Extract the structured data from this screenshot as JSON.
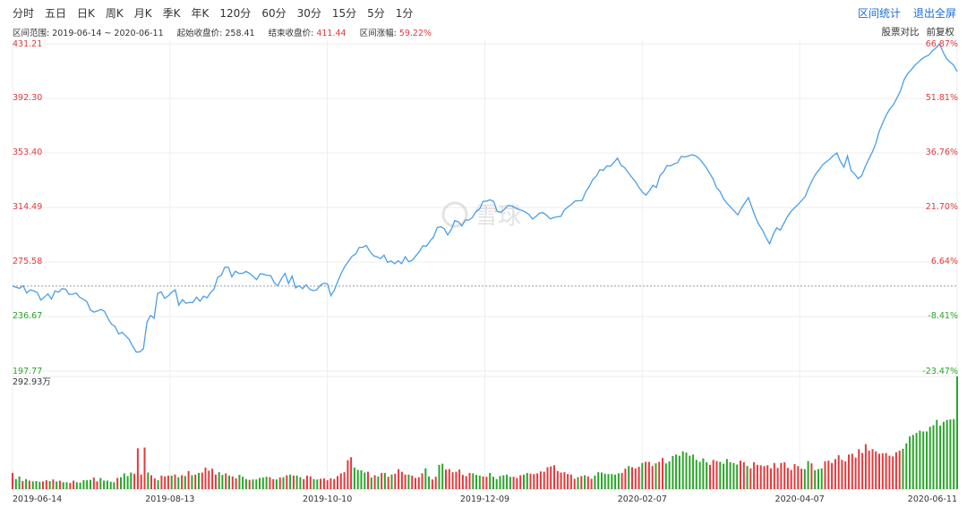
{
  "toolbar": {
    "periods": [
      "分时",
      "五日",
      "日K",
      "周K",
      "月K",
      "季K",
      "年K",
      "120分",
      "60分",
      "30分",
      "15分",
      "5分",
      "1分"
    ],
    "active_period": "日K",
    "right_actions": [
      "区间统计",
      "退出全屏"
    ]
  },
  "info_bar": {
    "range_label": "区间范围:",
    "range_value": "2019-06-14 ~ 2020-06-11",
    "start_label": "起始收盘价:",
    "start_value": "258.41",
    "end_label": "结束收盘价:",
    "end_value": "411.44",
    "change_label": "区间涨幅:",
    "change_value": "59.22%",
    "tools": [
      "股票对比",
      "前复权"
    ]
  },
  "watermark": "雪球",
  "colors": {
    "line": "#4a9ee8",
    "up": "#e4393c",
    "down": "#2aa52a",
    "grid": "#eeeeee",
    "baseline": "#999999"
  },
  "chart_data": [
    {
      "type": "line",
      "x_start": "2019-06-14",
      "x_end": "2020-06-11",
      "x_tick_labels": [
        "2019-06-14",
        "2019-08-13",
        "2019-10-10",
        "2019-12-09",
        "2020-02-07",
        "2020-04-07",
        "2020-06-11"
      ],
      "ylim": [
        197.77,
        431.21
      ],
      "y_tick_labels": [
        "431.21",
        "392.30",
        "353.40",
        "314.49",
        "275.58",
        "236.67",
        "197.77"
      ],
      "pct_tick_labels": [
        "66.87%",
        "51.81%",
        "36.76%",
        "21.70%",
        "6.64%",
        "-8.41%",
        "-23.47%"
      ],
      "baseline": 258.41,
      "series": [
        {
          "values": [
            258.4,
            257.5,
            256.8,
            258.6,
            253.5,
            255.7,
            254.9,
            253.8,
            248.4,
            250.5,
            252.8,
            249.2,
            254.9,
            254.1,
            256.6,
            256.2,
            252.5,
            252.6,
            253.4,
            250.4,
            249.1,
            247.3,
            241.5,
            239.8,
            240.6,
            241.8,
            240.4,
            235.2,
            231.2,
            229.5,
            224.3,
            225.4,
            222.9,
            220.2,
            215.4,
            211.3,
            211.5,
            213.8,
            232.6,
            237.4,
            235.5,
            253.2,
            254.3,
            249.7,
            251.4,
            254.0,
            255.7,
            244.8,
            248.8,
            246.1,
            246.7,
            246.6,
            250.5,
            247.6,
            251.2,
            250.1,
            253.9,
            256.5,
            264.7,
            266.1,
            271.9,
            271.8,
            265.0,
            269.0,
            267.4,
            267.5,
            268.9,
            267.5,
            265.3,
            263.0,
            267.2,
            266.8,
            266.0,
            265.9,
            260.6,
            258.7,
            263.6,
            267.5,
            260.3,
            265.5,
            257.1,
            258.7,
            256.6,
            259.3,
            256.1,
            255.1,
            255.7,
            259.0,
            260.4,
            260.0,
            251.5,
            255.8,
            262.2,
            267.9,
            272.7,
            276.2,
            279.7,
            281.3,
            286.0,
            286.1,
            287.4,
            283.2,
            280.1,
            279.3,
            278.0,
            280.5,
            275.3,
            276.3,
            274.4,
            276.5,
            274.4,
            279.3,
            275.8,
            276.8,
            279.9,
            283.1,
            287.2,
            286.8,
            290.6,
            293.4,
            300.1,
            300.8,
            299.4,
            294.9,
            298.7,
            305.1,
            304.2,
            301.3,
            305.5,
            305.5,
            307.4,
            311.7,
            313.3,
            318.8,
            319.0,
            320.0,
            318.7,
            311.7,
            311.1,
            313.0,
            315.9,
            315.6,
            314.5,
            313.1,
            312.3,
            311.1,
            309.4,
            306.2,
            308.1,
            310.5,
            310.8,
            308.8,
            306.4,
            307.3,
            307.8,
            308.2,
            312.8,
            314.9,
            316.7,
            319.1,
            319.3,
            319.5,
            325.5,
            329.5,
            334.3,
            336.9,
            341.4,
            341.1,
            344.0,
            343.9,
            346.6,
            349.7,
            344.6,
            342.9,
            339.4,
            336.2,
            333.2,
            329.0,
            325.6,
            323.2,
            326.3,
            330.3,
            328.7,
            337.3,
            339.9,
            344.4,
            344.1,
            345.6,
            346.5,
            350.9,
            350.5,
            351.1,
            352.1,
            351.4,
            349.6,
            346.6,
            343.2,
            339.1,
            334.8,
            328.6,
            325.8,
            320.4,
            317.3,
            314.7,
            311.9,
            309.2,
            313.9,
            317.8,
            321.4,
            314.4,
            307.5,
            302.1,
            298.2,
            292.8,
            288.5,
            295.2,
            300.0,
            298.2,
            303.1,
            307.8,
            311.5,
            314.1,
            316.5,
            319.3,
            322.0,
            328.2,
            333.6,
            338.2,
            341.5,
            344.9,
            347.0,
            349.0,
            351.5,
            353.4,
            347.3,
            343.2,
            351.2,
            340.8,
            338.5,
            335.0,
            337.0,
            343.5,
            348.8,
            353.9,
            360.0,
            369.0,
            374.8,
            380.7,
            384.7,
            387.9,
            392.7,
            397.8,
            405.5,
            409.9,
            412.5,
            415.8,
            418.0,
            420.4,
            422.0,
            423.2,
            426.3,
            428.3,
            431.2,
            425.5,
            420.6,
            418.2,
            416.0,
            411.4
          ]
        }
      ]
    },
    {
      "type": "bar",
      "title": "292.93万",
      "ylim": [
        0,
        292.93
      ],
      "series": [
        {
          "values": [
            42,
            26,
            33,
            21,
            26,
            22,
            20,
            21,
            19,
            20,
            23,
            21,
            25,
            20,
            22,
            18,
            18,
            16,
            22,
            18,
            17,
            23,
            23,
            24,
            30,
            20,
            29,
            22,
            22,
            19,
            18,
            29,
            31,
            41,
            34,
            43,
            40,
            106,
            38,
            108,
            43,
            36,
            28,
            23,
            35,
            33,
            35,
            35,
            38,
            31,
            36,
            34,
            47,
            36,
            38,
            42,
            43,
            56,
            48,
            53,
            38,
            44,
            37,
            41,
            35,
            33,
            28,
            37,
            32,
            26,
            24,
            25,
            25,
            29,
            30,
            32,
            31,
            26,
            25,
            30,
            31,
            36,
            38,
            35,
            35,
            31,
            26,
            35,
            33,
            26,
            25,
            27,
            28,
            23,
            28,
            26,
            34,
            41,
            44,
            75,
            83,
            56,
            50,
            49,
            43,
            45,
            30,
            36,
            33,
            42,
            42,
            32,
            38,
            40,
            52,
            45,
            38,
            38,
            35,
            29,
            31,
            41,
            54,
            33,
            25,
            32,
            63,
            66,
            51,
            52,
            44,
            45,
            51,
            37,
            34,
            42,
            41,
            37,
            35,
            33,
            32,
            42,
            32,
            26,
            34,
            36,
            38,
            32,
            32,
            29,
            36,
            38,
            42,
            40,
            39,
            41,
            46,
            45,
            57,
            59,
            62,
            47,
            43,
            44,
            39,
            38,
            27,
            31,
            34,
            36,
            33,
            27,
            35,
            44,
            43,
            40,
            39,
            39,
            38,
            41,
            42,
            53,
            60,
            57,
            54,
            58,
            68,
            71,
            71,
            60,
            67,
            71,
            81,
            67,
            72,
            86,
            90,
            87,
            98,
            95,
            87,
            90,
            76,
            71,
            80,
            70,
            63,
            76,
            73,
            71,
            66,
            78,
            70,
            68,
            64,
            74,
            70,
            60,
            54,
            70,
            63,
            62,
            60,
            62,
            54,
            68,
            55,
            68,
            70,
            55,
            50,
            65,
            60,
            53,
            52,
            73,
            67,
            49,
            52,
            54,
            72,
            74,
            68,
            78,
            88,
            76,
            72,
            90,
            92,
            82,
            104,
            94,
            117,
            100,
            104,
            98,
            92,
            93,
            94,
            87,
            85,
            96,
            100,
            105,
            119,
            137,
            141,
            146,
            152,
            150,
            150,
            162,
            166,
            180,
            165,
            175,
            180,
            181,
            182,
            292.93
          ]
        }
      ]
    }
  ]
}
